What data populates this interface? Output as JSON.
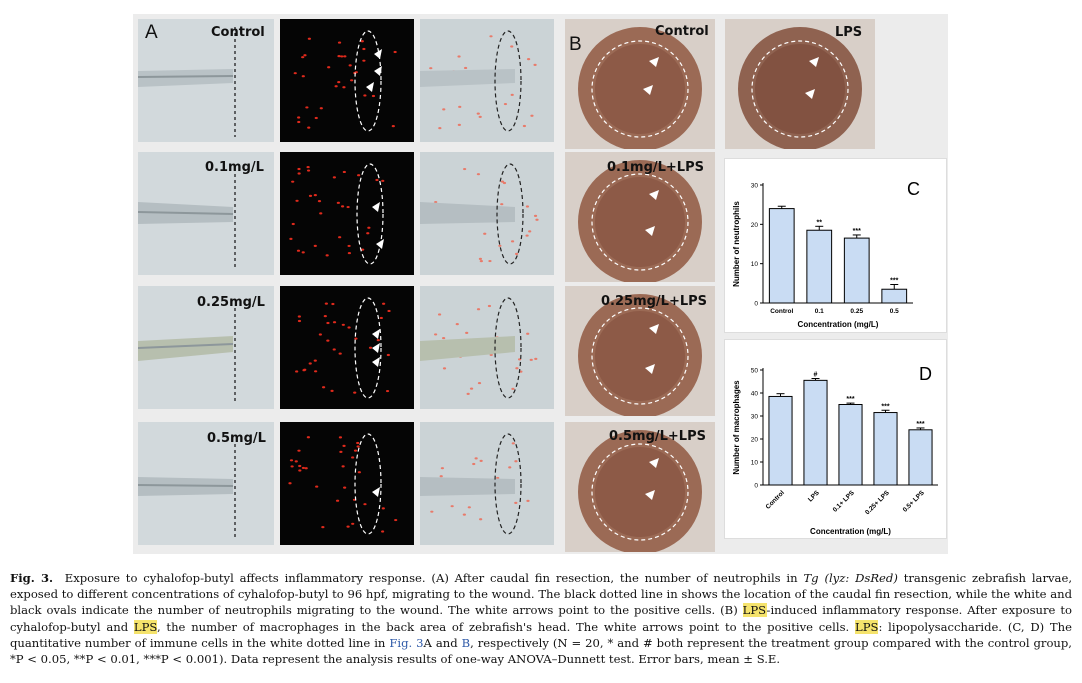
{
  "panelA": {
    "letter": "A",
    "rows": [
      {
        "label": "Control"
      },
      {
        "label": "0.1mg/L"
      },
      {
        "label": "0.25mg/L"
      },
      {
        "label": "0.5mg/L"
      }
    ]
  },
  "panelB": {
    "letter": "B",
    "labels": [
      "Control",
      "LPS",
      "0.1mg/L+LPS",
      "0.25mg/L+LPS",
      "0.5mg/L+LPS"
    ]
  },
  "chart_data": [
    {
      "type": "bar",
      "panel": "C",
      "ylabel": "Number of neutrophils",
      "xlabel": "Concentration (mg/L)",
      "categories": [
        "Control",
        "0.1",
        "0.25",
        "0.5"
      ],
      "values": [
        24,
        18.5,
        16.5,
        3.5
      ],
      "errors": [
        0.6,
        1.0,
        0.8,
        1.2
      ],
      "significance": [
        "",
        "**",
        "***",
        "***"
      ],
      "ylim": [
        0,
        30
      ],
      "yticks": [
        0,
        10,
        20,
        30
      ],
      "bar_color": "#c9dcf3"
    },
    {
      "type": "bar",
      "panel": "D",
      "ylabel": "Number of macrophages",
      "xlabel": "Concentration (mg/L)",
      "categories": [
        "Control",
        "LPS",
        "0.1+ LPS",
        "0.25+ LPS",
        "0.5+ LPS"
      ],
      "values": [
        38.5,
        45.5,
        35,
        31.5,
        24
      ],
      "errors": [
        1.2,
        0.8,
        0.6,
        1.0,
        0.8
      ],
      "significance": [
        "",
        "#",
        "***",
        "***",
        "***"
      ],
      "ylim": [
        0,
        50
      ],
      "yticks": [
        0,
        10,
        20,
        30,
        40,
        50
      ],
      "bar_color": "#c9dcf3"
    }
  ],
  "caption": {
    "fig_label": "Fig. 3.",
    "p1": "Exposure to cyhalofop-butyl affects inflammatory response. (A) After caudal fin resection, the number of neutrophils in ",
    "tg": "Tg (lyz: DsRed)",
    "p2": " transgenic zebrafish larvae, exposed to different concentrations of cyhalofop-butyl to 96 hpf, migrating to the wound. The black dotted line in shows the location of the caudal fin resection, while the white and black ovals indicate the number of neutrophils migrating to the wound. The white arrows point to the positive cells. (B) ",
    "lps1": "LPS",
    "p3": "-induced inflammatory response. After exposure to cyhalofop-butyl and ",
    "lps2": "LPS",
    "p4": ", the number of macrophages in the back area of zebrafish's head. The white arrows point to the positive cells. ",
    "lps3": "LPS",
    "p5": ": lipopolysaccharide. (C, D) The quantitative number of immune cells in the white dotted line in ",
    "link1": "Fig. 3",
    "p6": "A and ",
    "link2": "B",
    "p7": ", respectively (N = 20, * and # both represent the treatment group compared with the control group, *P < 0.05, **P < 0.01, ***P < 0.001). Data represent the analysis results of one-way ANOVA–Dunnett test. Error bars, mean ± S.E."
  }
}
